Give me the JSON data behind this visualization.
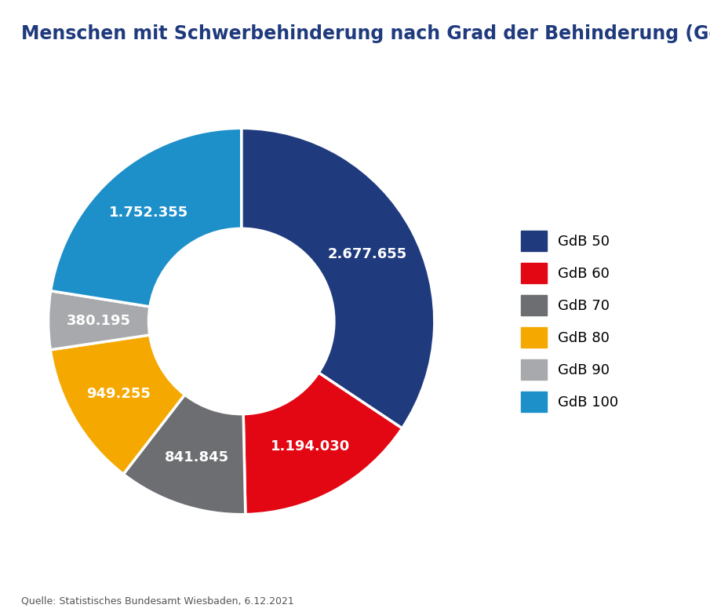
{
  "title": "Menschen mit Schwerbehinderung nach Grad der Behinderung (GdB)",
  "title_fontsize": 17,
  "source_text": "Quelle: Statistisches Bundesamt Wiesbaden, 6.12.2021",
  "labels": [
    "GdB 50",
    "GdB 60",
    "GdB 70",
    "GdB 80",
    "GdB 90",
    "GdB 100"
  ],
  "values": [
    2677655,
    1194030,
    841845,
    949255,
    380195,
    1752355
  ],
  "display_labels": [
    "2.677.655",
    "1.194.030",
    "841.845",
    "949.255",
    "380.195",
    "1.752.355"
  ],
  "colors": [
    "#1f3a7d",
    "#e30613",
    "#6d6e71",
    "#f5a800",
    "#a7a9ac",
    "#1d8fc9"
  ],
  "background_color": "#ffffff",
  "donut_width": 0.52,
  "label_fontsize": 13,
  "legend_fontsize": 13,
  "source_fontsize": 9
}
